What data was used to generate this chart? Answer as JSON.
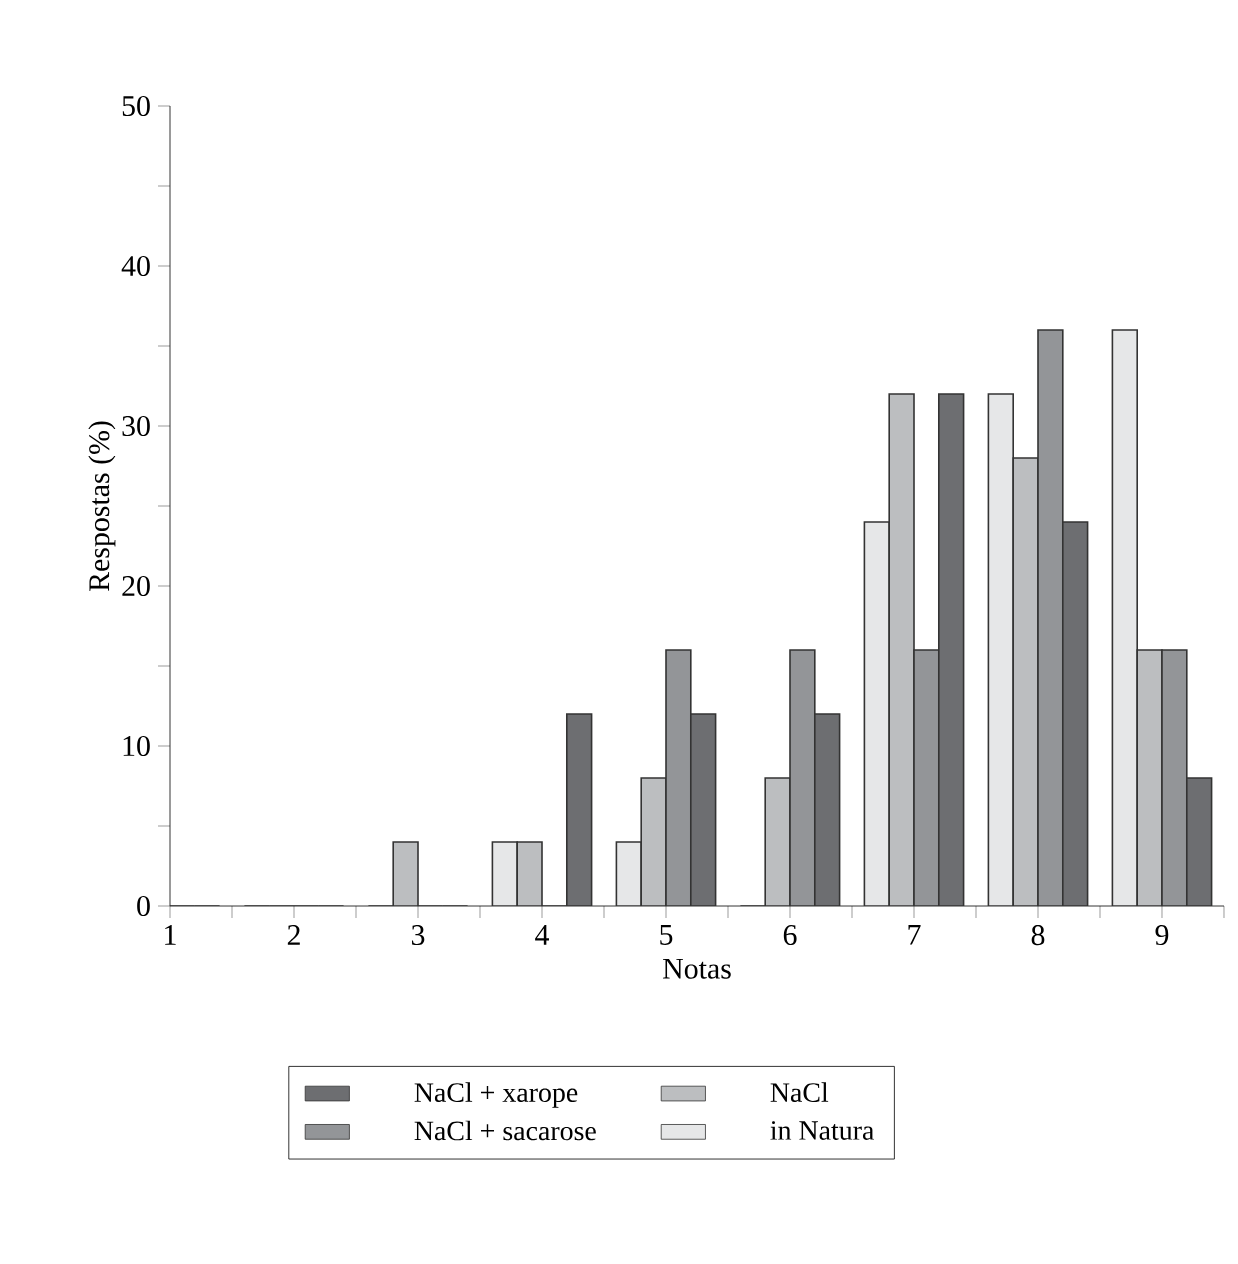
{
  "chart_data": {
    "type": "bar",
    "xlabel": "Notas",
    "ylabel": "Respostas (%)",
    "categories": [
      "1",
      "2",
      "3",
      "4",
      "5",
      "6",
      "7",
      "8",
      "9"
    ],
    "series": [
      {
        "name": "in Natura",
        "color": "#e6e7e8",
        "values": [
          0,
          0,
          0,
          4,
          4,
          0,
          24,
          32,
          36
        ]
      },
      {
        "name": "NaCl",
        "color": "#bcbec0",
        "values": [
          0,
          0,
          4,
          4,
          8,
          8,
          32,
          28,
          16
        ]
      },
      {
        "name": "NaCl + sacarose",
        "color": "#939598",
        "values": [
          0,
          0,
          0,
          0,
          16,
          16,
          16,
          36,
          16
        ]
      },
      {
        "name": "NaCl + xarope",
        "color": "#6d6e71",
        "values": [
          0,
          0,
          0,
          12,
          12,
          12,
          32,
          24,
          8
        ]
      }
    ],
    "ylim": [
      0,
      50
    ],
    "yticks": [
      0,
      {
        "value": 5,
        "label": null
      },
      10,
      {
        "value": 15,
        "label": null
      },
      20,
      {
        "value": 25,
        "label": null
      },
      30,
      {
        "value": 35,
        "label": null
      },
      40,
      {
        "value": 45,
        "label": null
      },
      50
    ],
    "grid": false,
    "legend": "bottom"
  }
}
